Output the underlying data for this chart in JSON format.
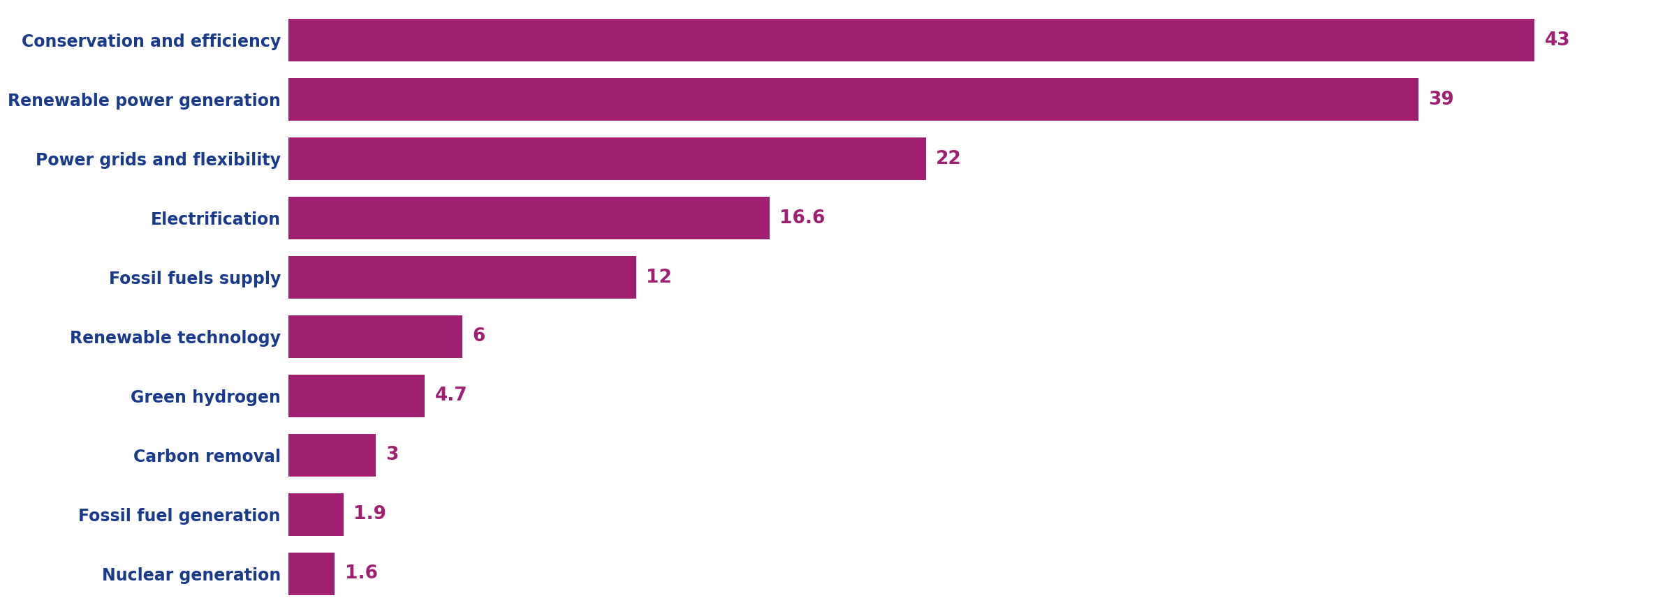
{
  "categories": [
    "Nuclear generation",
    "Fossil fuel generation",
    "Carbon removal",
    "Green hydrogen",
    "Renewable technology",
    "Fossil fuels supply",
    "Electrification",
    "Power grids and flexibility",
    "Renewable power generation",
    "Conservation and efficiency"
  ],
  "values": [
    1.6,
    1.9,
    3.0,
    4.7,
    6.0,
    12.0,
    16.6,
    22.0,
    39.0,
    43.0
  ],
  "labels": [
    "1.6",
    "1.9",
    "3",
    "4.7",
    "6",
    "12",
    "16.6",
    "22",
    "39",
    "43"
  ],
  "bar_color": "#A01F72",
  "label_color": "#A01F72",
  "category_color": "#1A3B8B",
  "background_color": "#ffffff",
  "bar_height": 0.72,
  "xlim": [
    0,
    47
  ],
  "label_fontsize": 19,
  "category_fontsize": 17,
  "figsize": [
    23.74,
    8.8
  ],
  "dpi": 100
}
